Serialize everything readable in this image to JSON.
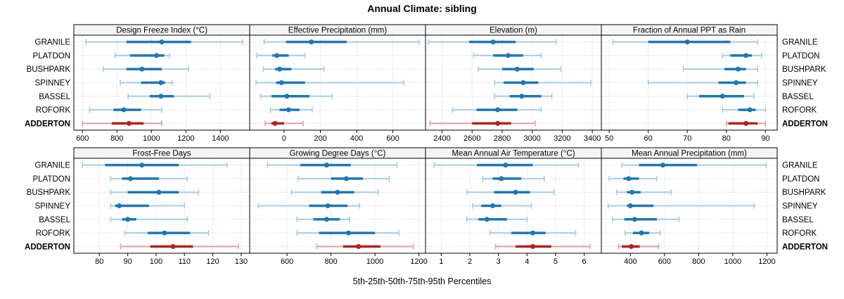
{
  "title": "Annual Climate: sibling",
  "caption": "5th-25th-50th-75th-95th Percentiles",
  "colors": {
    "accent_blue": "#1f77b4",
    "accent_blue_light": "#a5cde3",
    "highlight_red": "#b22222",
    "highlight_red_light": "#e0a1a1",
    "strip_bg": "#f5f5f5",
    "grid": "#c8c8c8",
    "border": "#000000"
  },
  "chart_data": {
    "type": "interval",
    "subtype": "percentile-range-dotplot",
    "title": "Annual Climate: sibling",
    "caption": "5th-25th-50th-75th-95th Percentiles",
    "percentile_levels": [
      5,
      25,
      50,
      75,
      95
    ],
    "categories": [
      "GRANILE",
      "PLATDON",
      "BUSHPARK",
      "SPINNEY",
      "BASSEL",
      "ROFORK",
      "ADDERTON"
    ],
    "highlight": "ADDERTON",
    "legend_position": "none",
    "grid": "dotted",
    "panels": [
      {
        "title": "Design Freeze Index (°C)",
        "xlim": [
          550,
          1570
        ],
        "ticks": [
          600,
          800,
          1000,
          1200,
          1400
        ],
        "series": [
          {
            "name": "GRANILE",
            "p": [
              620,
              855,
              1060,
              1230,
              1530
            ]
          },
          {
            "name": "PLATDON",
            "p": [
              790,
              875,
              1030,
              1075,
              1105
            ]
          },
          {
            "name": "BUSHPARK",
            "p": [
              720,
              855,
              945,
              1060,
              1215
            ]
          },
          {
            "name": "SPINNEY",
            "p": [
              820,
              940,
              1055,
              1080,
              1120
            ]
          },
          {
            "name": "BASSEL",
            "p": [
              865,
              990,
              1055,
              1130,
              1340
            ]
          },
          {
            "name": "ROFORK",
            "p": [
              640,
              780,
              840,
              940,
              1060
            ]
          },
          {
            "name": "ADDERTON",
            "p": [
              600,
              770,
              870,
              955,
              1060
            ]
          }
        ]
      },
      {
        "title": "Effective Precipitation (mm)",
        "xlim": [
          -190,
          780
        ],
        "ticks": [
          0,
          200,
          400,
          600
        ],
        "series": [
          {
            "name": "GRANILE",
            "p": [
              -110,
              10,
              150,
              345,
              745
            ]
          },
          {
            "name": "PLATDON",
            "p": [
              -150,
              -65,
              -40,
              25,
              115
            ]
          },
          {
            "name": "BUSHPARK",
            "p": [
              -115,
              -50,
              -25,
              40,
              220
            ]
          },
          {
            "name": "SPINNEY",
            "p": [
              -155,
              -45,
              -15,
              115,
              660
            ]
          },
          {
            "name": "BASSEL",
            "p": [
              -130,
              -70,
              15,
              140,
              265
            ]
          },
          {
            "name": "ROFORK",
            "p": [
              -75,
              -25,
              25,
              85,
              155
            ]
          },
          {
            "name": "ADDERTON",
            "p": [
              -105,
              -70,
              -50,
              0,
              105
            ]
          }
        ]
      },
      {
        "title": "Elevation (m)",
        "xlim": [
          2290,
          3460
        ],
        "ticks": [
          2400,
          2600,
          2800,
          3000,
          3200,
          3400
        ],
        "series": [
          {
            "name": "GRANILE",
            "p": [
              2310,
              2580,
              2740,
              2890,
              3160
            ]
          },
          {
            "name": "PLATDON",
            "p": [
              2610,
              2740,
              2840,
              2940,
              3060
            ]
          },
          {
            "name": "BUSHPARK",
            "p": [
              2640,
              2800,
              2900,
              3010,
              3190
            ]
          },
          {
            "name": "SPINNEY",
            "p": [
              2750,
              2810,
              2940,
              3040,
              3390
            ]
          },
          {
            "name": "BASSEL",
            "p": [
              2750,
              2850,
              2930,
              3060,
              3130
            ]
          },
          {
            "name": "ROFORK",
            "p": [
              2470,
              2630,
              2770,
              2900,
              3060
            ]
          },
          {
            "name": "ADDERTON",
            "p": [
              2320,
              2600,
              2770,
              2860,
              3020
            ]
          }
        ]
      },
      {
        "title": "Fraction of Annual PPT as Rain",
        "xlim": [
          48,
          93
        ],
        "ticks": [
          50,
          60,
          70,
          80,
          90
        ],
        "series": [
          {
            "name": "GRANILE",
            "p": [
              51,
              60,
              70,
              81,
              88
            ]
          },
          {
            "name": "PLATDON",
            "p": [
              79,
              81,
              85,
              86.5,
              89
            ]
          },
          {
            "name": "BUSHPARK",
            "p": [
              69,
              79.5,
              83,
              85,
              88
            ]
          },
          {
            "name": "SPINNEY",
            "p": [
              60,
              78,
              82.5,
              85,
              88
            ]
          },
          {
            "name": "BASSEL",
            "p": [
              70,
              73,
              79,
              84.5,
              87
            ]
          },
          {
            "name": "ROFORK",
            "p": [
              79,
              83,
              86,
              87.5,
              90
            ]
          },
          {
            "name": "ADDERTON",
            "p": [
              80,
              80.5,
              85,
              88,
              90
            ]
          }
        ]
      },
      {
        "title": "Frost-Free Days",
        "xlim": [
          71,
          133
        ],
        "ticks": [
          80,
          90,
          100,
          110,
          120,
          130
        ],
        "series": [
          {
            "name": "GRANILE",
            "p": [
              74,
              82,
              95,
              108,
              125
            ]
          },
          {
            "name": "PLATDON",
            "p": [
              84,
              88,
              91,
              101,
              111
            ]
          },
          {
            "name": "BUSHPARK",
            "p": [
              84,
              90,
              101,
              108,
              115
            ]
          },
          {
            "name": "SPINNEY",
            "p": [
              84,
              85.5,
              87,
              97.5,
              110
            ]
          },
          {
            "name": "BASSEL",
            "p": [
              84,
              88,
              90,
              93,
              111
            ]
          },
          {
            "name": "ROFORK",
            "p": [
              89,
              97,
              103,
              112,
              118.5
            ]
          },
          {
            "name": "ADDERTON",
            "p": [
              87.5,
              98,
              106,
              113,
              129
            ]
          }
        ]
      },
      {
        "title": "Growing Degree Days (°C)",
        "xlim": [
          430,
          1230
        ],
        "ticks": [
          600,
          800,
          1000,
          1200
        ],
        "series": [
          {
            "name": "GRANILE",
            "p": [
              510,
              660,
              780,
              890,
              1100
            ]
          },
          {
            "name": "PLATDON",
            "p": [
              650,
              800,
              870,
              945,
              1065
            ]
          },
          {
            "name": "BUSHPARK",
            "p": [
              620,
              755,
              830,
              905,
              1015
            ]
          },
          {
            "name": "SPINNEY",
            "p": [
              470,
              700,
              785,
              875,
              930
            ]
          },
          {
            "name": "BASSEL",
            "p": [
              645,
              720,
              780,
              840,
              885
            ]
          },
          {
            "name": "ROFORK",
            "p": [
              645,
              745,
              880,
              1000,
              1110
            ]
          },
          {
            "name": "ADDERTON",
            "p": [
              735,
              855,
              925,
              1025,
              1175
            ]
          }
        ]
      },
      {
        "title": "Mean Annual Air Temperature (°C)",
        "xlim": [
          0.45,
          6.6
        ],
        "ticks": [
          1,
          2,
          3,
          4,
          5,
          6
        ],
        "series": [
          {
            "name": "GRANILE",
            "p": [
              0.75,
              2.25,
              3.25,
              4.2,
              5.8
            ]
          },
          {
            "name": "PLATDON",
            "p": [
              2.45,
              2.8,
              3.1,
              3.8,
              4.6
            ]
          },
          {
            "name": "BUSHPARK",
            "p": [
              1.9,
              2.85,
              3.6,
              4.1,
              4.95
            ]
          },
          {
            "name": "SPINNEY",
            "p": [
              2.1,
              2.4,
              2.8,
              3.1,
              4.15
            ]
          },
          {
            "name": "BASSEL",
            "p": [
              1.9,
              2.3,
              2.6,
              3.3,
              4.0
            ]
          },
          {
            "name": "ROFORK",
            "p": [
              2.7,
              3.45,
              4.2,
              4.65,
              5.7
            ]
          },
          {
            "name": "ADDERTON",
            "p": [
              2.9,
              3.6,
              4.2,
              4.85,
              6.2
            ]
          }
        ]
      },
      {
        "title": "Mean Annual Precipitation (mm)",
        "xlim": [
          230,
          1260
        ],
        "ticks": [
          400,
          600,
          800,
          1000,
          1200
        ],
        "series": [
          {
            "name": "GRANILE",
            "p": [
              350,
              450,
              590,
              790,
              1195
            ]
          },
          {
            "name": "PLATDON",
            "p": [
              275,
              360,
              390,
              450,
              555
            ]
          },
          {
            "name": "BUSHPARK",
            "p": [
              320,
              380,
              410,
              460,
              640
            ]
          },
          {
            "name": "SPINNEY",
            "p": [
              270,
              380,
              400,
              535,
              1125
            ]
          },
          {
            "name": "BASSEL",
            "p": [
              295,
              365,
              425,
              555,
              685
            ]
          },
          {
            "name": "ROFORK",
            "p": [
              370,
              415,
              465,
              510,
              575
            ]
          },
          {
            "name": "ADDERTON",
            "p": [
              330,
              350,
              405,
              455,
              565
            ]
          }
        ]
      }
    ]
  }
}
